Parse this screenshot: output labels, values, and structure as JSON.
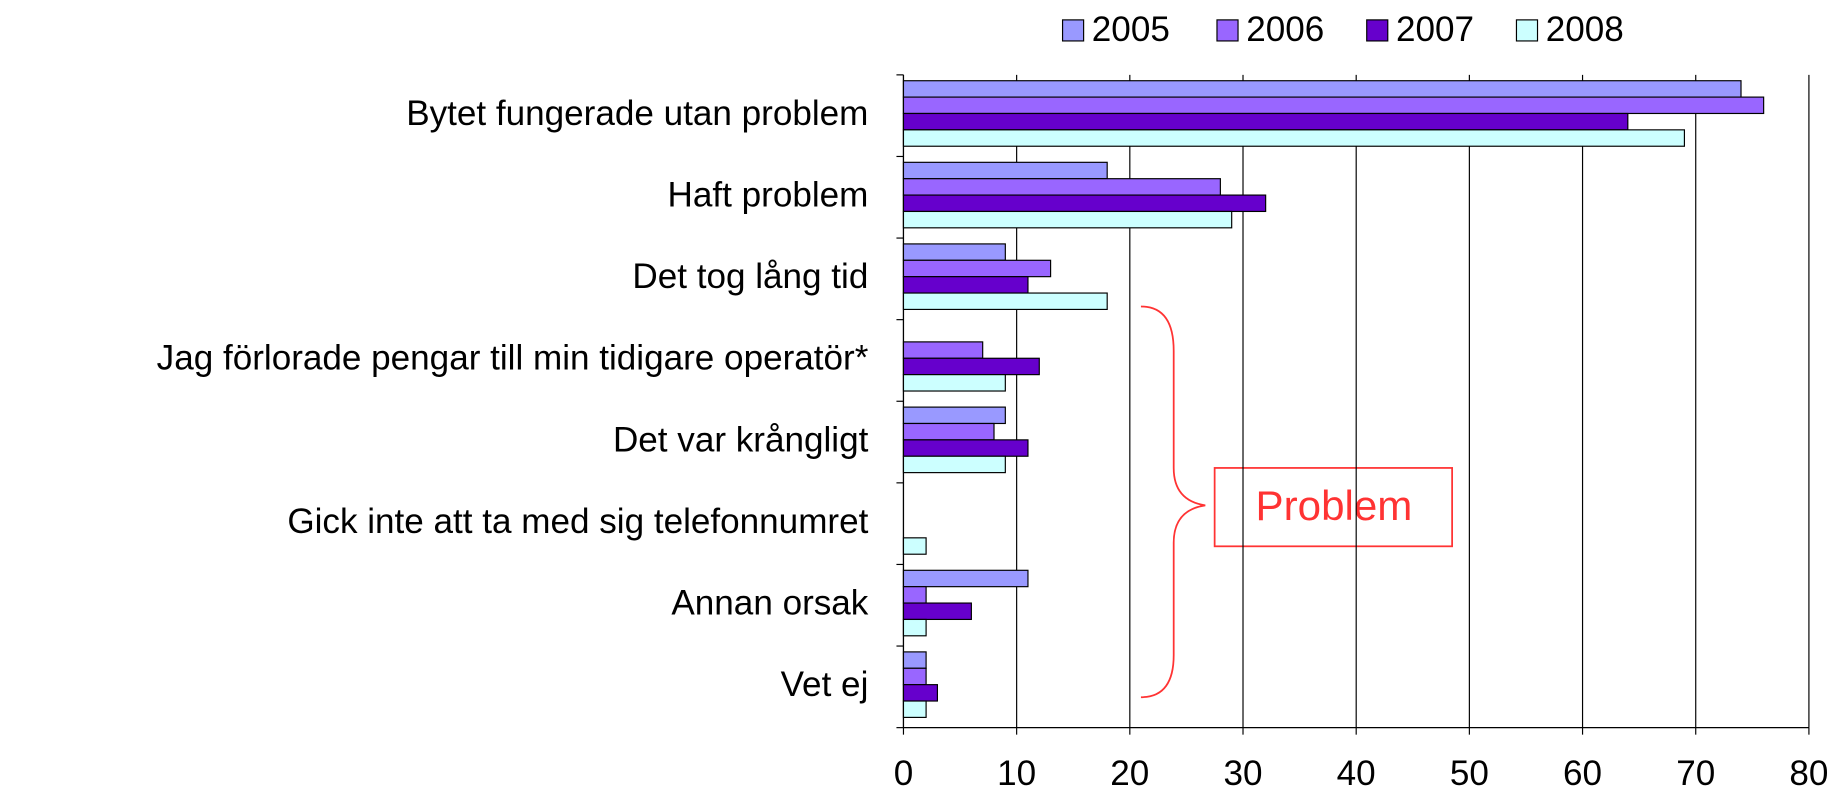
{
  "chart_data": {
    "type": "bar",
    "orientation": "horizontal",
    "categories": [
      "Bytet fungerade utan problem",
      "Haft problem",
      "Det tog lång tid",
      "Jag förlorade pengar till min tidigare operatör*",
      "Det var krångligt",
      "Gick inte att ta med sig telefonnumret",
      "Annan orsak",
      "Vet ej"
    ],
    "series": [
      {
        "name": "2005",
        "color": "#9999ff",
        "values": [
          74,
          18,
          9,
          null,
          9,
          null,
          11,
          2
        ]
      },
      {
        "name": "2006",
        "color": "#9966ff",
        "values": [
          76,
          28,
          13,
          7,
          8,
          null,
          2,
          2
        ]
      },
      {
        "name": "2007",
        "color": "#6600cc",
        "values": [
          64,
          32,
          11,
          12,
          11,
          null,
          6,
          3
        ]
      },
      {
        "name": "2008",
        "color": "#ccffff",
        "values": [
          69,
          29,
          18,
          9,
          9,
          2,
          2,
          2
        ]
      }
    ],
    "xlim": [
      0,
      80
    ],
    "xticks": [
      0,
      10,
      20,
      30,
      40,
      50,
      60,
      70,
      80
    ],
    "grid": true,
    "legend": "top",
    "annotation": "Problem"
  }
}
